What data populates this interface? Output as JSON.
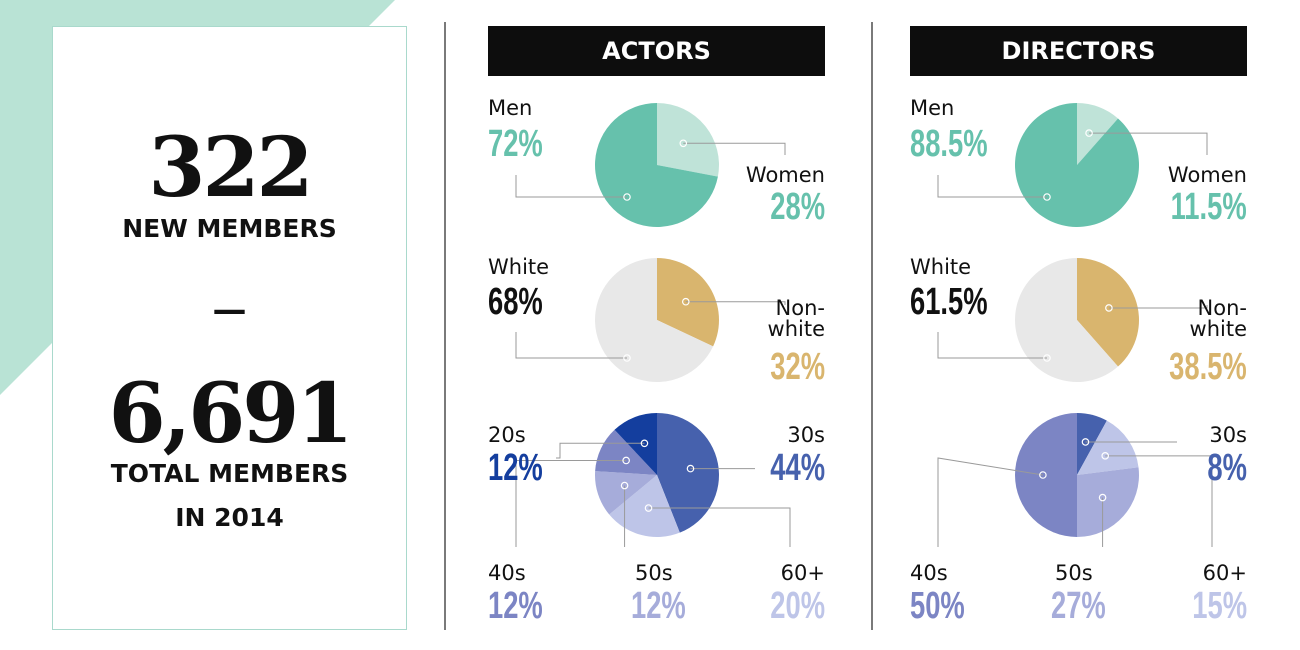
{
  "colors": {
    "mint_bg": "#b9e3d5",
    "card_border": "#a9d9cc",
    "gender_men": "#66c1ac",
    "gender_women": "#bfe3d8",
    "race_white": "#e8e8e8",
    "race_nonwhite": "#d9b56e",
    "age_20s": "#143e9e",
    "age_30s": "#4661ad",
    "age_40s": "#7c85c4",
    "age_50s": "#a6acda",
    "age_60plus": "#bec5e8",
    "header_bg": "#0d0d0d"
  },
  "summary": {
    "new_count": "322",
    "new_label": "NEW MEMBERS",
    "dash": "—",
    "total_count": "6,691",
    "total_label_line1": "TOTAL MEMBERS",
    "total_label_line2": "IN 2014"
  },
  "chart_data": [
    {
      "type": "pie",
      "title": "ACTORS",
      "charts": [
        {
          "name": "gender",
          "slices": [
            {
              "label": "Men",
              "value": 72,
              "value_text": "72%"
            },
            {
              "label": "Women",
              "value": 28,
              "value_text": "28%"
            }
          ]
        },
        {
          "name": "race",
          "slices": [
            {
              "label": "White",
              "value": 68,
              "value_text": "68%"
            },
            {
              "label": "Non-\nwhite",
              "value": 32,
              "value_text": "32%"
            }
          ]
        },
        {
          "name": "age",
          "slices": [
            {
              "label": "30s",
              "value": 44,
              "value_text": "44%"
            },
            {
              "label": "60+",
              "value": 20,
              "value_text": "20%"
            },
            {
              "label": "50s",
              "value": 12,
              "value_text": "12%"
            },
            {
              "label": "40s",
              "value": 12,
              "value_text": "12%"
            },
            {
              "label": "20s",
              "value": 12,
              "value_text": "12%"
            }
          ]
        }
      ]
    },
    {
      "type": "pie",
      "title": "DIRECTORS",
      "charts": [
        {
          "name": "gender",
          "slices": [
            {
              "label": "Men",
              "value": 88.5,
              "value_text": "88.5%"
            },
            {
              "label": "Women",
              "value": 11.5,
              "value_text": "11.5%"
            }
          ]
        },
        {
          "name": "race",
          "slices": [
            {
              "label": "White",
              "value": 61.5,
              "value_text": "61.5%"
            },
            {
              "label": "Non-\nwhite",
              "value": 38.5,
              "value_text": "38.5%"
            }
          ]
        },
        {
          "name": "age",
          "slices": [
            {
              "label": "30s",
              "value": 8,
              "value_text": "8%"
            },
            {
              "label": "60+",
              "value": 15,
              "value_text": "15%"
            },
            {
              "label": "50s",
              "value": 27,
              "value_text": "27%"
            },
            {
              "label": "40s",
              "value": 50,
              "value_text": "50%"
            }
          ]
        }
      ]
    }
  ]
}
